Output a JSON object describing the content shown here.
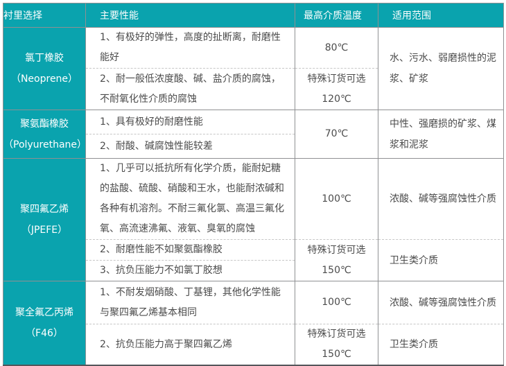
{
  "table": {
    "headers": {
      "lining": "衬里选择",
      "performance": "主要性能",
      "max_temp": "最高介质温度",
      "scope": "适用范围"
    },
    "sections": [
      {
        "material": "氯丁橡胶",
        "material_en": "（Neoprene）",
        "scope": "水、污水、弱磨损性的泥浆、矿浆",
        "rows": [
          {
            "perf": "1、有极好的弹性，高度的扯断离，耐磨性能好",
            "temp": "80℃"
          },
          {
            "perf": "2、耐一般低浓度酸、碱、盐介质的腐蚀，不耐氧化性介质的腐蚀",
            "temp1": "特殊订货可选",
            "temp2": "120℃"
          }
        ]
      },
      {
        "material": "聚氨酯橡胶",
        "material_en": "（Polyurethane）",
        "temp": "70℃",
        "scope": "中性、强磨损的矿浆、煤浆和泥浆",
        "rows": [
          {
            "perf": "1、具有极好的耐磨性能"
          },
          {
            "perf": "2、耐酸、碱腐蚀性能较差"
          }
        ]
      },
      {
        "material": "聚四氟乙烯",
        "material_en": "（JPEFE）",
        "rows": [
          {
            "perf": "1、几乎可以抵抗所有化学介质，能耐妃糖的盐酸、硫酸、硝酸和王水，也能耐浓碱和各种有机溶剂。不耐三氟化氯、高温三氟化氧、高流速沸氟、液氧、臭氧的腐蚀",
            "temp": "100℃",
            "scope": "浓酸、碱等强腐蚀性介质"
          },
          {
            "perf": "2、耐磨性能不如聚氨酯橡胶",
            "temp1": "特殊订货可选",
            "temp2": "150℃",
            "scope": "卫生类介质"
          },
          {
            "perf": "3、抗负压能力不如氯丁胶想"
          }
        ]
      },
      {
        "material": "聚全氟乙丙烯",
        "material_en": "（F46）",
        "rows": [
          {
            "perf": "1、不耐发烟硝酸、丁基锂，其他化学性能与聚四氟乙烯基本相同",
            "temp": "100℃",
            "scope": "浓酸、碱等强腐蚀性介质"
          },
          {
            "perf": "2、抗负压能力高于聚四氟乙烯",
            "temp1": "特殊订货可选",
            "temp2": "150℃",
            "scope": "卫生类介质"
          }
        ]
      }
    ]
  },
  "colors": {
    "accent_teal": "#0aa3ae",
    "grid_line": "#8f9092",
    "dashed_line": "#c6c6c6",
    "body_text": "#4b4b4b",
    "header_text": "#ffffff"
  }
}
